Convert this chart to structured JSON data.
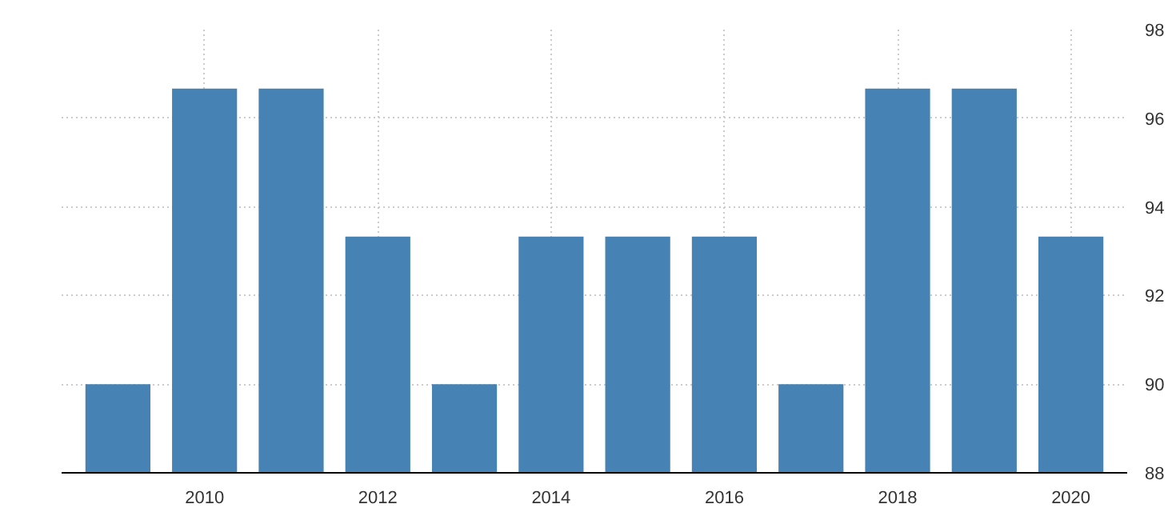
{
  "chart_data": {
    "type": "bar",
    "x": [
      2009,
      2010,
      2011,
      2012,
      2013,
      2014,
      2015,
      2016,
      2017,
      2018,
      2019,
      2020
    ],
    "values": [
      90,
      96.67,
      96.67,
      93.33,
      90,
      93.33,
      93.33,
      93.33,
      90,
      96.67,
      96.67,
      93.33
    ],
    "color": "#4682b4",
    "xlim": [
      2008.35,
      2020.65
    ],
    "xticks": [
      2010,
      2012,
      2014,
      2016,
      2018,
      2020
    ],
    "ylim": [
      88,
      98
    ],
    "yticks": [
      88,
      90,
      92,
      94,
      96,
      98
    ],
    "grid": true
  }
}
